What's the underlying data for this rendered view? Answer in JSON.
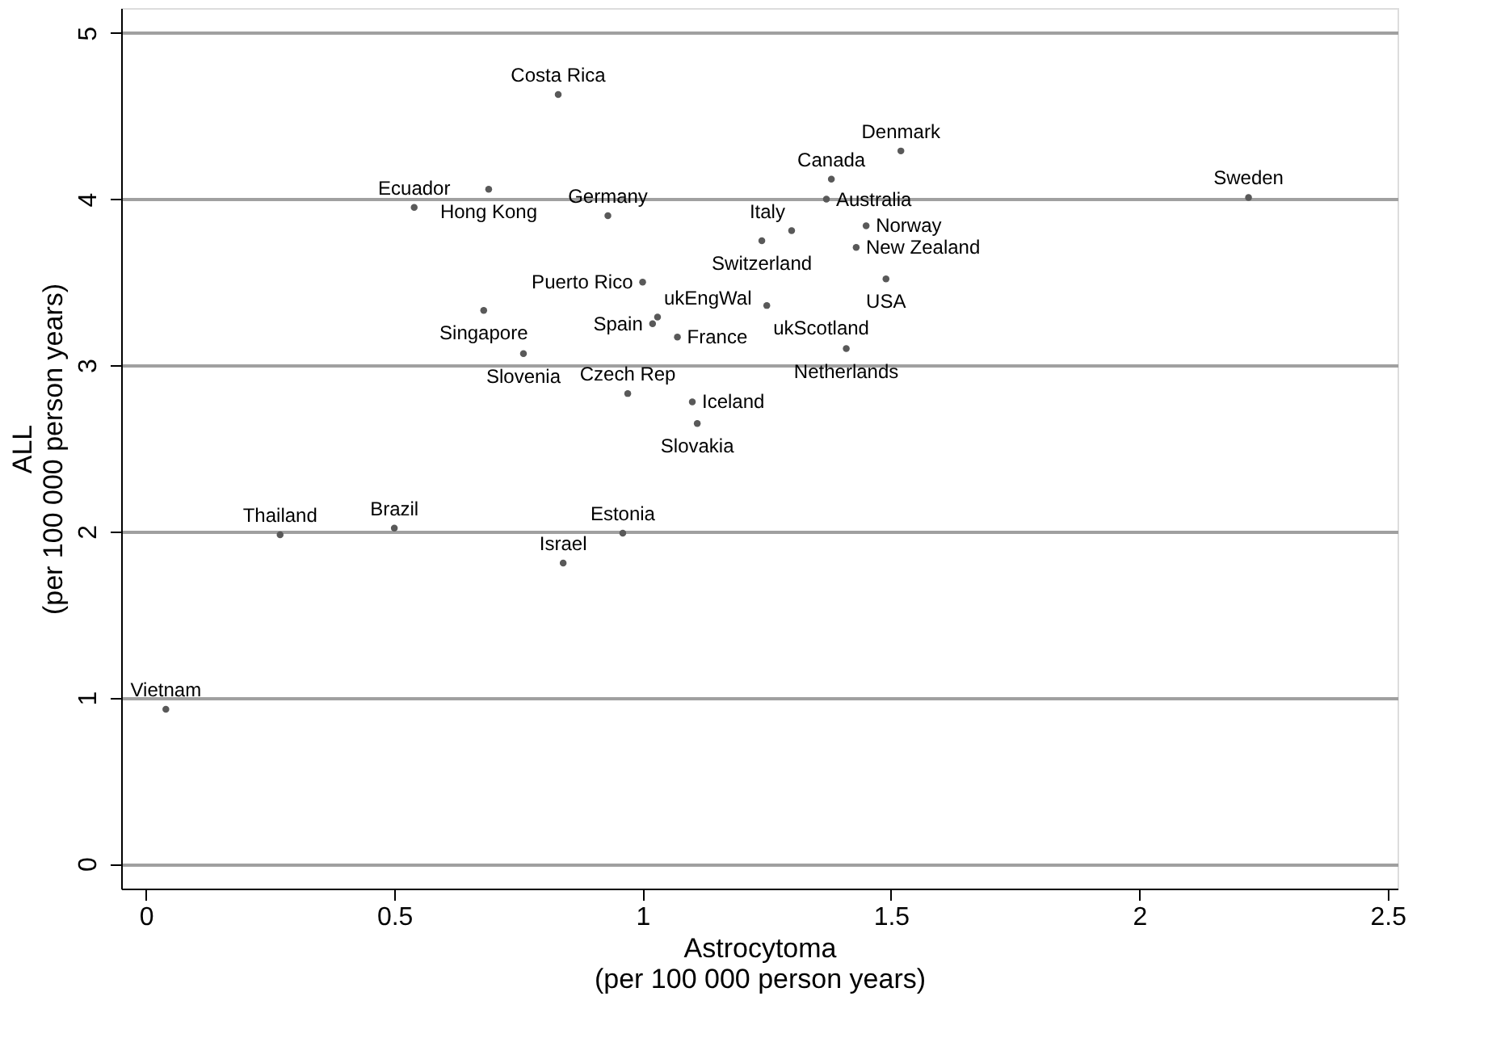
{
  "chart_data": {
    "type": "scatter",
    "xlabel": "Astrocytoma\n(per 100 000 person years)",
    "ylabel": "ALL\n(per 100 000 person years)",
    "x": [
      0.04,
      0.27,
      0.5,
      0.84,
      0.96,
      0.97,
      1.11,
      1.1,
      0.54,
      0.69,
      0.93,
      1.24,
      1.3,
      1.45,
      1.43,
      1.49,
      1.38,
      1.37,
      1.52,
      2.22,
      1.0,
      0.68,
      0.76,
      1.02,
      1.03,
      1.07,
      1.25,
      1.41,
      0.83
    ],
    "values": [
      0.93,
      1.98,
      2.02,
      1.81,
      1.99,
      2.83,
      2.65,
      2.78,
      3.95,
      4.06,
      3.9,
      3.75,
      3.81,
      3.84,
      3.71,
      3.52,
      4.12,
      4.0,
      4.29,
      4.01,
      3.5,
      3.33,
      3.07,
      3.25,
      3.29,
      3.17,
      3.36,
      3.1,
      4.63
    ],
    "value_labels": [
      "Vietnam",
      "Thailand",
      "Brazil",
      "Israel",
      "Estonia",
      "Czech Rep",
      "Slovakia",
      "Iceland",
      "Ecuador",
      "Hong Kong",
      "Germany",
      "Switzerland",
      "Italy",
      "Norway",
      "New Zealand",
      "USA",
      "Canada",
      "Australia",
      "Denmark",
      "Sweden",
      "Puerto Rico",
      "Singapore",
      "Slovenia",
      "Spain",
      "ukEngWal",
      "France",
      "ukScotland",
      "Netherlands",
      "Costa Rica"
    ],
    "color": "#595959",
    "marker": "circle",
    "grid": "y",
    "xlim": [
      -0.05,
      2.52
    ],
    "ylim": [
      -0.15,
      5.15
    ],
    "xticks": [
      0,
      0.5,
      1,
      1.5,
      2,
      2.5
    ],
    "yticks": [
      0,
      1,
      2,
      3,
      4,
      5
    ]
  }
}
